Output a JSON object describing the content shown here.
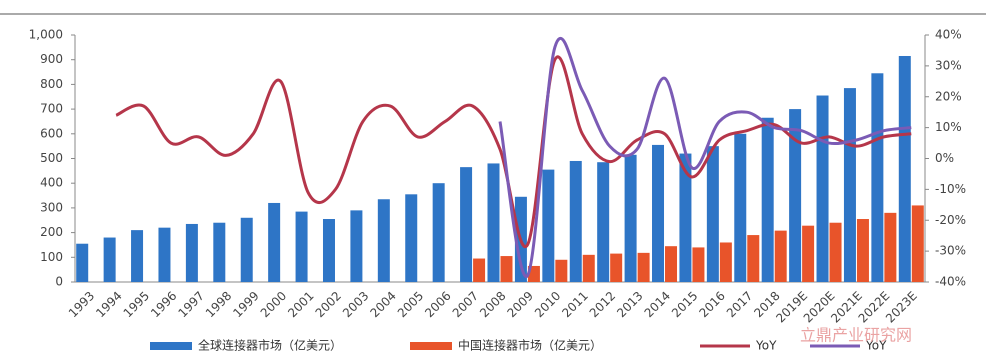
{
  "chart_data": {
    "type": "bar-line",
    "categories": [
      "1993",
      "1994",
      "1995",
      "1996",
      "1997",
      "1998",
      "1999",
      "2000",
      "2001",
      "2002",
      "2003",
      "2004",
      "2005",
      "2006",
      "2007",
      "2008",
      "2009",
      "2010",
      "2011",
      "2012",
      "2013",
      "2014",
      "2015",
      "2016",
      "2017",
      "2018",
      "2019E",
      "2020E",
      "2021E",
      "2022E",
      "2023E"
    ],
    "series": [
      {
        "name": "全球连接器市场（亿美元）",
        "type": "bar",
        "color": "#2e75c6",
        "values": [
          155,
          180,
          210,
          220,
          235,
          240,
          260,
          320,
          285,
          255,
          290,
          335,
          355,
          400,
          465,
          480,
          345,
          455,
          490,
          485,
          515,
          555,
          520,
          550,
          600,
          665,
          700,
          755,
          785,
          845,
          915
        ]
      },
      {
        "name": "中国连接器市场（亿美元）",
        "type": "bar",
        "color": "#e8542a",
        "values": [
          null,
          null,
          null,
          null,
          null,
          null,
          null,
          null,
          null,
          null,
          null,
          null,
          null,
          null,
          95,
          105,
          65,
          90,
          110,
          115,
          118,
          145,
          140,
          160,
          190,
          208,
          228,
          240,
          255,
          280,
          310
        ]
      },
      {
        "name": "YoY",
        "type": "line",
        "axis": "y2",
        "color": "#b5364a",
        "values": [
          null,
          14,
          17,
          5,
          7,
          1,
          8,
          25,
          -11,
          -10,
          12,
          17,
          7,
          12,
          17,
          3,
          -28,
          32,
          8,
          -1,
          6,
          8,
          -6,
          6,
          9,
          11,
          5,
          7,
          4,
          7,
          8
        ]
      },
      {
        "name": "YoY",
        "type": "line",
        "axis": "y2",
        "color": "#7b5bb5",
        "values": [
          null,
          null,
          null,
          null,
          null,
          null,
          null,
          null,
          null,
          null,
          null,
          null,
          null,
          null,
          null,
          12,
          -38,
          36,
          22,
          4,
          3,
          26,
          -3,
          12,
          15,
          10,
          9,
          5,
          6,
          9,
          10
        ]
      }
    ],
    "ylim": [
      0,
      1000
    ],
    "yticks": [
      0,
      100,
      200,
      300,
      400,
      500,
      600,
      700,
      800,
      900,
      {
        "value": 1000,
        "label": "1,000"
      }
    ],
    "y2lim": [
      -40,
      40
    ],
    "y2ticks": [
      {
        "value": -40,
        "label": "-40%"
      },
      {
        "value": -30,
        "label": "-30%"
      },
      {
        "value": -20,
        "label": "-20%"
      },
      {
        "value": -10,
        "label": "-10%"
      },
      {
        "value": 0,
        "label": "0%"
      },
      {
        "value": 10,
        "label": "10%"
      },
      {
        "value": 20,
        "label": "20%"
      },
      {
        "value": 30,
        "label": "30%"
      },
      {
        "value": 40,
        "label": "40%"
      }
    ],
    "watermark": "立鼎产业研究网"
  }
}
